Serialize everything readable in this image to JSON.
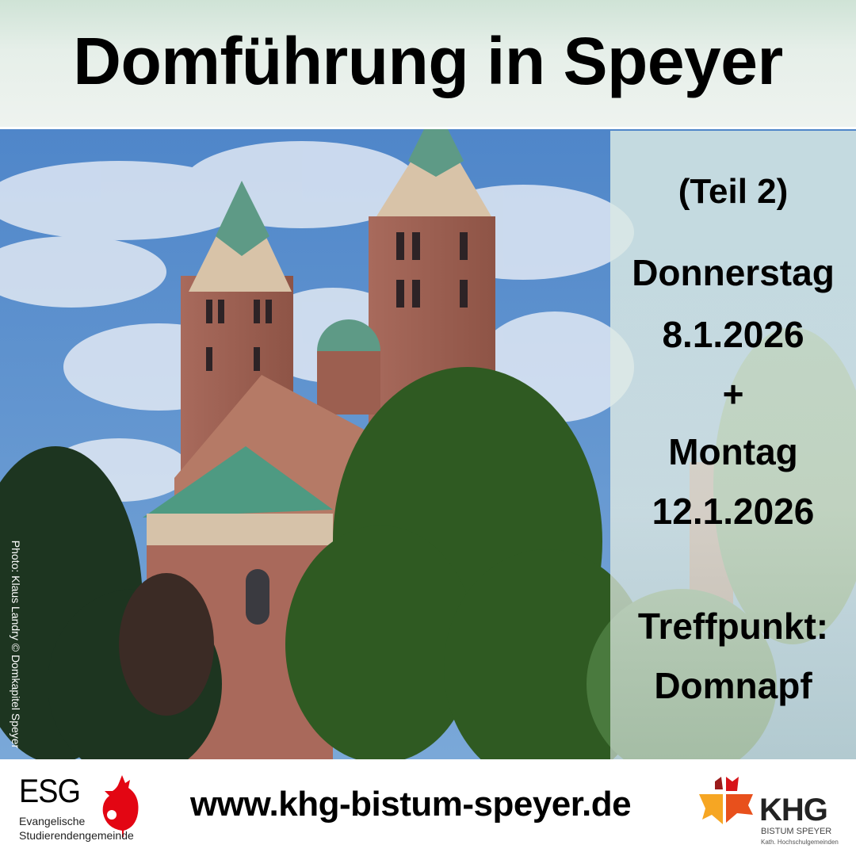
{
  "header": {
    "title": "Domführung in Speyer"
  },
  "panel": {
    "part": "(Teil 2)",
    "day1": "Donnerstag",
    "date1": "8.1.2026",
    "plus": "+",
    "day2": "Montag",
    "date2": "12.1.2026",
    "meeting_label": "Treffpunkt:",
    "meeting_place": "Domnapf"
  },
  "photo": {
    "credit": "Photo: Klaus Landry © Domkapitel Speyer"
  },
  "footer": {
    "url": "www.khg-bistum-speyer.de",
    "esg": {
      "abbr": "ESG",
      "line1": "Evangelische",
      "line2": "Studierendengemeinde"
    },
    "khg": {
      "abbr": "KHG",
      "line1": "BISTUM SPEYER",
      "line2": "Kath. Hochschulgemeinden"
    }
  },
  "colors": {
    "esg_red": "#e30613",
    "khg_yellow": "#f6a623",
    "khg_orange": "#e8501c",
    "khg_darkred": "#9b1b1b",
    "khg_red": "#d7141a"
  }
}
